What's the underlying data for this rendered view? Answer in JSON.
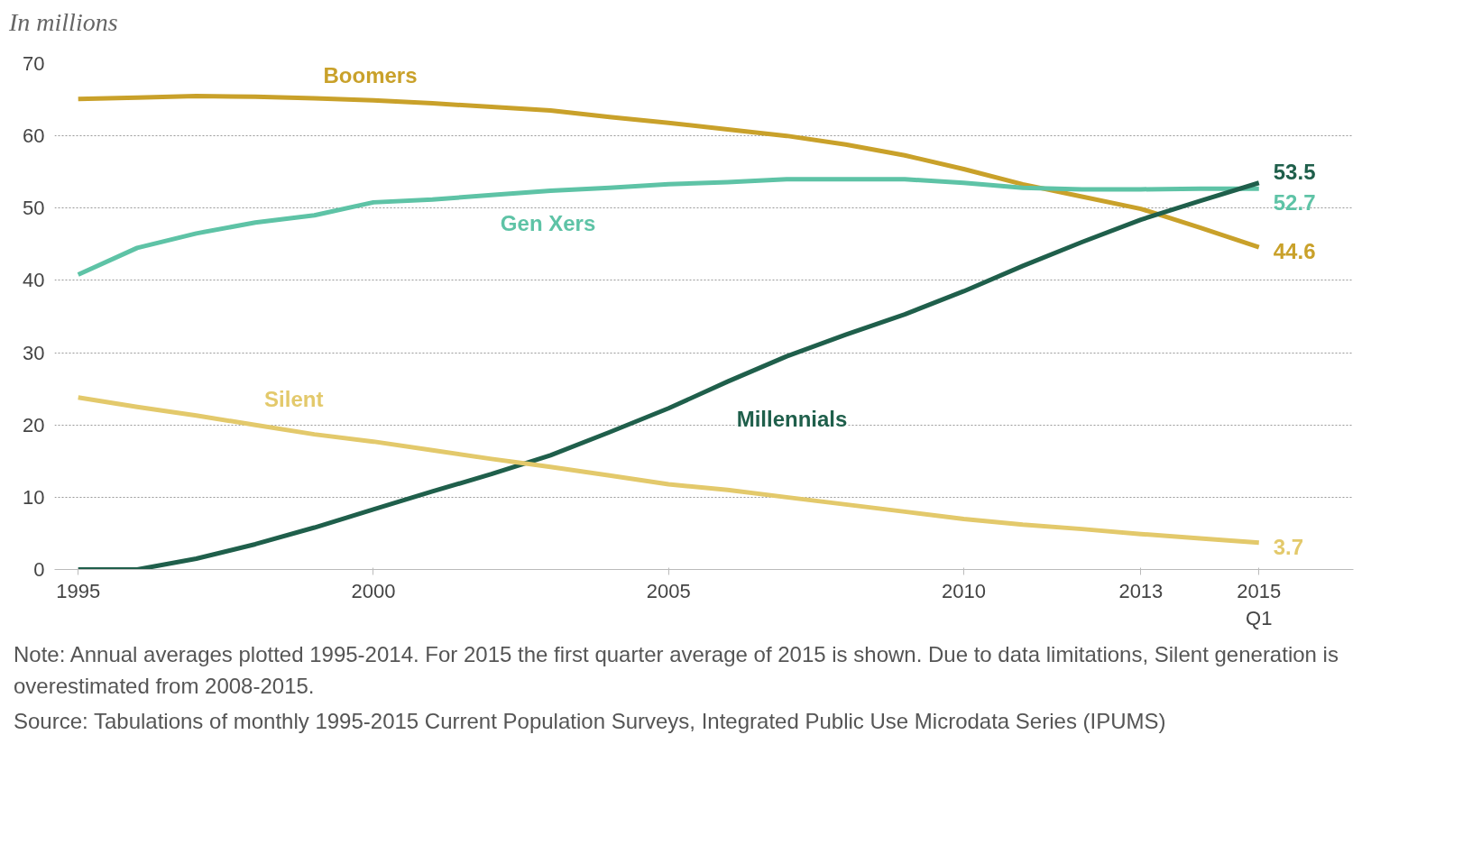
{
  "chart_data": {
    "type": "line",
    "ylabel": "In millions",
    "x": [
      1995,
      1996,
      1997,
      1998,
      1999,
      2000,
      2001,
      2002,
      2003,
      2004,
      2005,
      2006,
      2007,
      2008,
      2009,
      2010,
      2011,
      2012,
      2013,
      2014,
      2015
    ],
    "series": [
      {
        "name": "Boomers",
        "color": "#c9a12a",
        "values": [
          65.1,
          65.3,
          65.5,
          65.4,
          65.2,
          64.9,
          64.5,
          64.0,
          63.5,
          62.6,
          61.8,
          60.9,
          60.0,
          58.8,
          57.3,
          55.4,
          53.3,
          51.6,
          49.9,
          47.3,
          44.6
        ],
        "value_labels": [
          null,
          null,
          null,
          null,
          null,
          null,
          null,
          null,
          null,
          null,
          null,
          null,
          null,
          null,
          null,
          null,
          null,
          null,
          null,
          null,
          "44.6"
        ]
      },
      {
        "name": "Gen Xers",
        "color": "#5ec3a6",
        "values": [
          40.8,
          44.5,
          46.5,
          48.0,
          49.0,
          50.8,
          51.2,
          51.8,
          52.4,
          52.8,
          53.3,
          53.6,
          54.0,
          54.0,
          54.0,
          53.5,
          52.8,
          52.6,
          52.6,
          52.7,
          52.7
        ],
        "value_labels": [
          null,
          null,
          null,
          null,
          null,
          null,
          null,
          null,
          null,
          null,
          null,
          null,
          null,
          null,
          null,
          null,
          null,
          null,
          null,
          null,
          "52.7"
        ]
      },
      {
        "name": "Millennials",
        "color": "#1f5f4b",
        "values": [
          0,
          0,
          1.5,
          3.5,
          5.8,
          8.3,
          10.8,
          13.2,
          15.8,
          19.0,
          22.3,
          26.0,
          29.5,
          32.5,
          35.3,
          38.5,
          42.0,
          45.3,
          48.4,
          51.0,
          53.5
        ],
        "value_labels": [
          null,
          null,
          null,
          null,
          null,
          null,
          null,
          null,
          null,
          null,
          null,
          null,
          null,
          null,
          null,
          null,
          null,
          null,
          null,
          null,
          "53.5"
        ]
      },
      {
        "name": "Silent",
        "color": "#e3c96b",
        "values": [
          23.8,
          22.5,
          21.3,
          20.0,
          18.7,
          17.7,
          16.5,
          15.3,
          14.2,
          13.0,
          11.8,
          11.0,
          10.0,
          9.0,
          8.0,
          7.0,
          6.2,
          5.6,
          4.9,
          4.3,
          3.7
        ],
        "value_labels": [
          null,
          null,
          null,
          null,
          null,
          null,
          null,
          null,
          null,
          null,
          null,
          null,
          null,
          null,
          null,
          null,
          null,
          null,
          null,
          null,
          "3.7"
        ]
      }
    ],
    "xlim": [
      1994.6,
      2016.6
    ],
    "xticks": [
      1995,
      2000,
      2005,
      2010,
      2013,
      {
        "value": 2015,
        "label": "2015\nQ1"
      }
    ],
    "ylim": [
      0,
      70
    ],
    "yticks": [
      0,
      10,
      20,
      30,
      40,
      50,
      60,
      70
    ],
    "grid": "y",
    "legend": false,
    "line_style": "solid",
    "annotations": [
      "Note: Annual averages plotted 1995-2014. For 2015 the first quarter average of 2015 is shown. Due to data limitations, Silent generation is overestimated from 2008-2015.",
      "Source: Tabulations of monthly 1995-2015 Current Population Surveys, Integrated Public Use Microdata Series (IPUMS)"
    ]
  }
}
